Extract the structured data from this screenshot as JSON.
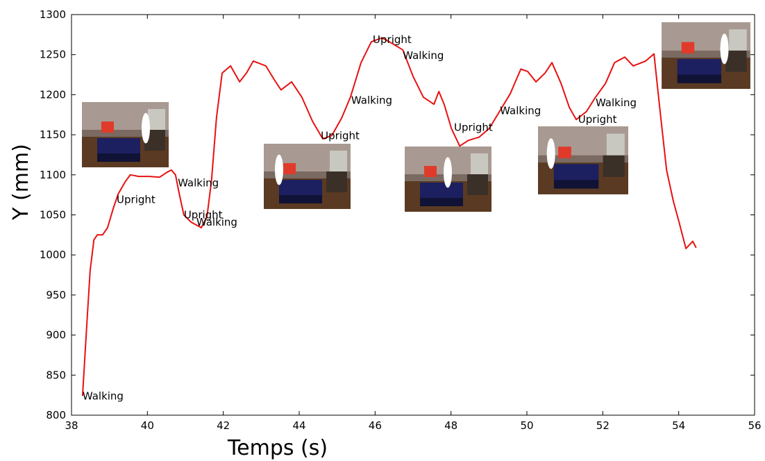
{
  "chart_data": {
    "type": "line",
    "xlabel": "Temps (s)",
    "ylabel": "Y (mm)",
    "xlim": [
      38,
      56
    ],
    "xticks": [
      38,
      40,
      42,
      44,
      46,
      48,
      50,
      52,
      54,
      56
    ],
    "ylim": [
      800,
      1300
    ],
    "yticks": [
      800,
      850,
      900,
      950,
      1000,
      1050,
      1100,
      1150,
      1200,
      1250,
      1300
    ],
    "grid": false,
    "series": [
      {
        "color": "#e81010",
        "x": [
          38.29,
          38.4,
          38.49,
          38.59,
          38.68,
          38.82,
          38.95,
          39.1,
          39.23,
          39.41,
          39.55,
          39.77,
          40.05,
          40.32,
          40.51,
          40.63,
          40.74,
          40.84,
          40.96,
          41.15,
          41.42,
          41.57,
          41.69,
          41.82,
          41.97,
          42.19,
          42.43,
          42.61,
          42.79,
          43.12,
          43.34,
          43.52,
          43.8,
          44.07,
          44.35,
          44.62,
          44.86,
          45.12,
          45.35,
          45.63,
          45.9,
          46.18,
          46.45,
          46.73,
          47.0,
          47.27,
          47.55,
          47.68,
          47.82,
          48.01,
          48.23,
          48.46,
          48.74,
          49.01,
          49.29,
          49.56,
          49.84,
          50.02,
          50.24,
          50.48,
          50.66,
          50.9,
          51.12,
          51.3,
          51.57,
          51.81,
          52.07,
          52.31,
          52.58,
          52.8,
          53.13,
          53.35,
          53.49,
          53.68,
          53.86,
          54.01,
          54.19,
          54.37,
          54.46
        ],
        "values": [
          824,
          911,
          980,
          1019,
          1025,
          1025,
          1034,
          1058,
          1076,
          1091,
          1100,
          1098,
          1098,
          1097,
          1103,
          1106,
          1100,
          1076,
          1050,
          1041,
          1034,
          1048,
          1093,
          1171,
          1227,
          1236,
          1216,
          1227,
          1242,
          1236,
          1219,
          1206,
          1216,
          1197,
          1167,
          1145,
          1149,
          1171,
          1197,
          1240,
          1266,
          1271,
          1264,
          1256,
          1223,
          1197,
          1188,
          1204,
          1188,
          1158,
          1136,
          1143,
          1147,
          1158,
          1180,
          1201,
          1232,
          1229,
          1216,
          1227,
          1240,
          1214,
          1184,
          1169,
          1179,
          1197,
          1214,
          1240,
          1247,
          1236,
          1242,
          1251,
          1188,
          1106,
          1067,
          1041,
          1008,
          1017,
          1009
        ]
      }
    ],
    "annotations": [
      {
        "text": "Walking",
        "x": 38.29,
        "y": 824
      },
      {
        "text": "Upright",
        "x": 39.19,
        "y": 1069
      },
      {
        "text": "Walking",
        "x": 40.8,
        "y": 1090
      },
      {
        "text": "Upright",
        "x": 40.96,
        "y": 1050
      },
      {
        "text": "Walking",
        "x": 41.29,
        "y": 1041
      },
      {
        "text": "Upright",
        "x": 44.57,
        "y": 1149
      },
      {
        "text": "Walking",
        "x": 45.37,
        "y": 1193
      },
      {
        "text": "Upright",
        "x": 45.94,
        "y": 1269
      },
      {
        "text": "Walking",
        "x": 46.73,
        "y": 1249
      },
      {
        "text": "Upright",
        "x": 48.08,
        "y": 1159
      },
      {
        "text": "Walking",
        "x": 49.29,
        "y": 1180
      },
      {
        "text": "Upright",
        "x": 51.35,
        "y": 1169
      },
      {
        "text": "Walking",
        "x": 51.81,
        "y": 1190
      }
    ]
  }
}
